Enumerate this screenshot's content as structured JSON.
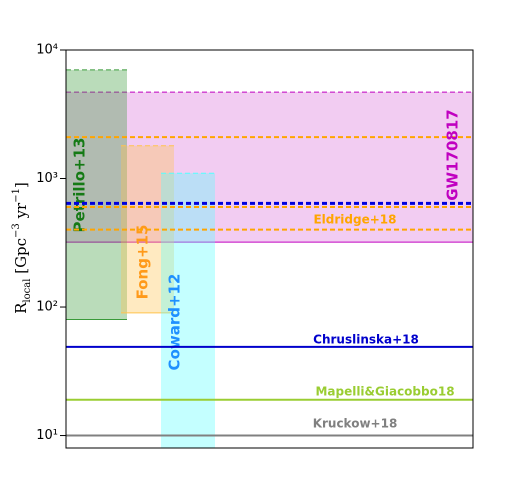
{
  "chart_data": {
    "type": "rate-bands",
    "ylabel": [
      "R",
      "local",
      " [Gpc",
      "−3",
      " yr",
      "−1",
      "]"
    ],
    "log_y": true,
    "ylim": [
      8,
      10000
    ],
    "yticks": [
      {
        "value": 10,
        "label": "10¹"
      },
      {
        "value": 100,
        "label": "10²"
      },
      {
        "value": 1000,
        "label": "10³"
      },
      {
        "value": 10000,
        "label": "10⁴"
      }
    ],
    "boxes": [
      {
        "name": "Petrillo+13",
        "color": "#3a9a3a",
        "label_color": "#157a15",
        "low": 80,
        "high": 7000
      },
      {
        "name": "Fong+15",
        "color": "#ffc34d",
        "label_color": "#ff9a1a",
        "low": 90,
        "high": 1800
      },
      {
        "name": "Coward+12",
        "color": "#55ffff",
        "label_color": "#1e90ff",
        "low": 8,
        "high": 1100
      }
    ],
    "band": {
      "name": "GW170817",
      "color": "#c000c0",
      "low": 320,
      "high": 4700,
      "center": 640,
      "center_color": "#0000dd"
    },
    "lines": [
      {
        "name": "Eldridge+18",
        "color": "#ffa500",
        "dashed": true,
        "values": [
          2100,
          600,
          400
        ]
      },
      {
        "name": "Chruslinska+18",
        "color": "#0000cc",
        "dashed": false,
        "values": [
          49
        ]
      },
      {
        "name": "Mapelli&Giacobbo18",
        "color": "#9acd32",
        "dashed": false,
        "values": [
          19
        ]
      },
      {
        "name": "Kruckow+18",
        "color": "#808080",
        "dashed": false,
        "values": [
          10
        ]
      }
    ]
  }
}
